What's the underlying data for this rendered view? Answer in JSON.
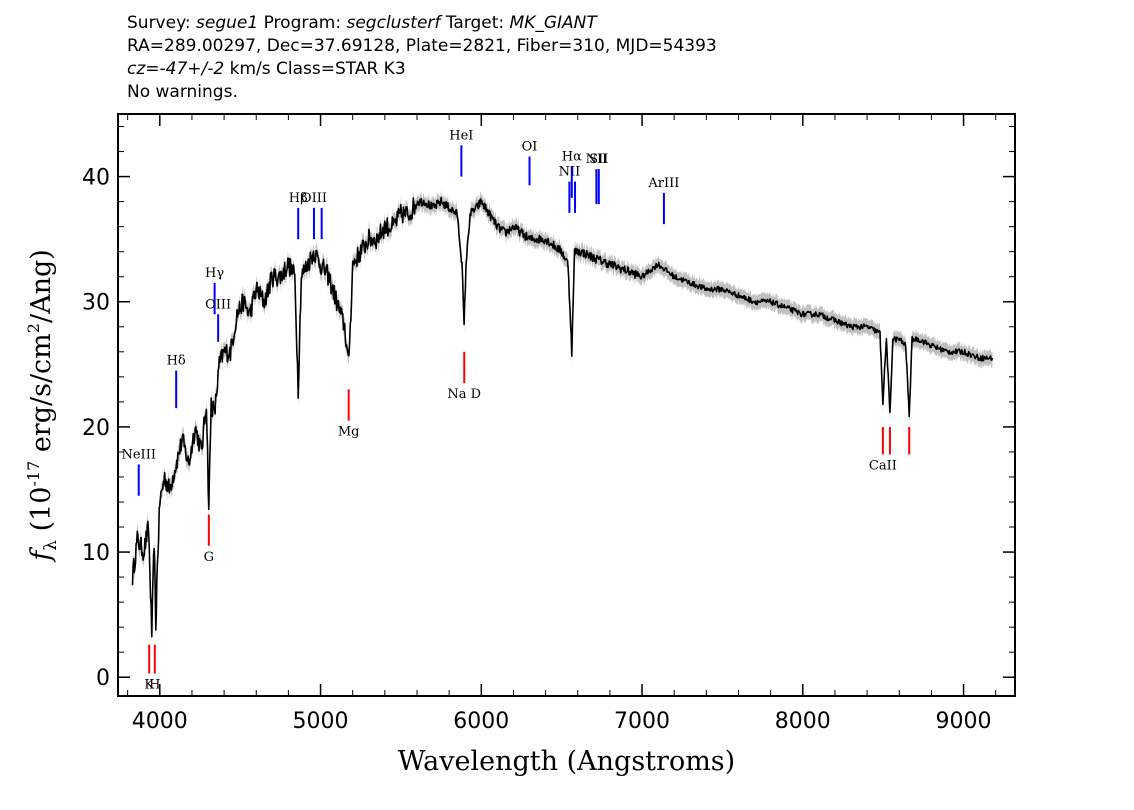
{
  "header": {
    "line1": {
      "survey_label": "Survey:",
      "survey": "segue1",
      "program_label": "Program:",
      "program": "segclusterf",
      "target_label": "Target:",
      "target": "MK_GIANT"
    },
    "line2": "RA=289.00297, Dec=37.69128, Plate=2821, Fiber=310, MJD=54393",
    "line3": {
      "cz_label": "cz=",
      "cz_value": "-47+/-2",
      "rest": " km/s Class=STAR K3"
    },
    "line4": "No warnings."
  },
  "chart_data": {
    "type": "line",
    "xlabel": "Wavelength (Angstroms)",
    "ylabel": "f_λ (10^-17 erg/s/cm^2/Ang)",
    "xlim": [
      3740,
      9320
    ],
    "ylim": [
      -1.5,
      45
    ],
    "xticks": [
      4000,
      5000,
      6000,
      7000,
      8000,
      9000
    ],
    "yticks": [
      0,
      10,
      20,
      30,
      40
    ],
    "grid": false,
    "colors": {
      "spectrum": "#000000",
      "error": "#b0b0b0",
      "emission_marker": "#0000ff",
      "absorption_marker": "#ff0000"
    },
    "series": [
      {
        "x": [
          3830,
          3860,
          3900,
          3930,
          3950,
          3965,
          3975,
          3985,
          4000,
          4030,
          4060,
          4101,
          4140,
          4180,
          4220,
          4260,
          4290,
          4305,
          4320,
          4340,
          4370,
          4400,
          4440,
          4480,
          4520,
          4560,
          4600,
          4650,
          4700,
          4750,
          4800,
          4840,
          4861,
          4880,
          4920,
          4960,
          5000,
          5050,
          5100,
          5150,
          5172,
          5185,
          5200,
          5250,
          5300,
          5350,
          5400,
          5450,
          5500,
          5550,
          5600,
          5650,
          5700,
          5750,
          5800,
          5850,
          5880,
          5893,
          5905,
          5930,
          5970,
          6000,
          6050,
          6100,
          6150,
          6200,
          6250,
          6300,
          6350,
          6400,
          6450,
          6500,
          6540,
          6563,
          6580,
          6620,
          6700,
          6800,
          6900,
          7000,
          7100,
          7200,
          7300,
          7400,
          7500,
          7600,
          7700,
          7800,
          7900,
          8000,
          8100,
          8200,
          8300,
          8400,
          8480,
          8498,
          8520,
          8542,
          8560,
          8600,
          8640,
          8662,
          8680,
          8720,
          8800,
          8900,
          9000,
          9100,
          9180
        ],
        "y": [
          8,
          11,
          10,
          12,
          3.5,
          11,
          4,
          9,
          14,
          16,
          15,
          17,
          19,
          17,
          20,
          18,
          22,
          13.5,
          22,
          21,
          25,
          26,
          26,
          29,
          30,
          29,
          31,
          30,
          32,
          32,
          33,
          32,
          23,
          32,
          33,
          34,
          33,
          32,
          30,
          28,
          25,
          28,
          33,
          34,
          35,
          35,
          36,
          36,
          37,
          37,
          38,
          38,
          37.5,
          38,
          37.5,
          37,
          33,
          28,
          33,
          37,
          37.5,
          38,
          37,
          36,
          35.5,
          36,
          35.5,
          35,
          35,
          35,
          34.5,
          34,
          33,
          26,
          34,
          34,
          33.5,
          33,
          32.5,
          32,
          33,
          32,
          31.5,
          31,
          31,
          30.5,
          30,
          30,
          29.5,
          29,
          29,
          28.5,
          28,
          28,
          27.5,
          22,
          27,
          21,
          27,
          27,
          26.5,
          21,
          27,
          27,
          26.5,
          26,
          26,
          25.5,
          25.5
        ]
      }
    ],
    "emission_lines": [
      {
        "label": "NeIII",
        "wavelength": 3869,
        "ymin": 14.5,
        "ymax": 17
      },
      {
        "label": "Hδ",
        "wavelength": 4102,
        "ymin": 21.5,
        "ymax": 24.5
      },
      {
        "label": "Hγ",
        "wavelength": 4341,
        "ymin": 29,
        "ymax": 31.5
      },
      {
        "label": "OIII",
        "wavelength": 4363,
        "ymin": 26.8,
        "ymax": 29
      },
      {
        "label": "Hβ",
        "wavelength": 4861,
        "ymin": 35,
        "ymax": 37.5
      },
      {
        "label": "OIII",
        "wavelength": 4959,
        "ymin": 35,
        "ymax": 37.5
      },
      {
        "label": "",
        "wavelength": 5007,
        "ymin": 35,
        "ymax": 37.5
      },
      {
        "label": "HeI",
        "wavelength": 5876,
        "ymin": 40,
        "ymax": 42.5
      },
      {
        "label": "OI",
        "wavelength": 6300,
        "ymin": 39.3,
        "ymax": 41.6
      },
      {
        "label": "NII",
        "wavelength": 6548,
        "ymin": 37.1,
        "ymax": 39.6
      },
      {
        "label": "Hα",
        "wavelength": 6563,
        "ymin": 38.3,
        "ymax": 40.8
      },
      {
        "label": "",
        "wavelength": 6583,
        "ymin": 37.1,
        "ymax": 39.6
      },
      {
        "label": "NII",
        "wavelength": 6716,
        "ymin": 37.8,
        "ymax": 40.6
      },
      {
        "label": "SII",
        "wavelength": 6731,
        "ymin": 37.8,
        "ymax": 40.6
      },
      {
        "label": "ArIII",
        "wavelength": 7136,
        "ymin": 36.2,
        "ymax": 38.7
      }
    ],
    "absorption_lines": [
      {
        "label": "K",
        "wavelength": 3934,
        "ymin": 0.3,
        "ymax": 2.6
      },
      {
        "label": "H",
        "wavelength": 3969,
        "ymin": 0.3,
        "ymax": 2.6
      },
      {
        "label": "G",
        "wavelength": 4305,
        "ymin": 10.5,
        "ymax": 13
      },
      {
        "label": "Mg",
        "wavelength": 5175,
        "ymin": 20.5,
        "ymax": 23
      },
      {
        "label": "Na D",
        "wavelength": 5894,
        "ymin": 23.5,
        "ymax": 26
      },
      {
        "label": "CaII",
        "wavelength": 8498,
        "ymin": 17.8,
        "ymax": 20
      },
      {
        "label": "",
        "wavelength": 8542,
        "ymin": 17.8,
        "ymax": 20
      },
      {
        "label": "",
        "wavelength": 8662,
        "ymin": 17.8,
        "ymax": 20
      }
    ]
  }
}
